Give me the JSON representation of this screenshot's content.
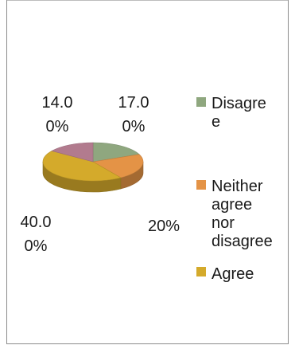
{
  "chart_data": {
    "type": "pie",
    "style": "3d",
    "slices": [
      {
        "name": "Disagree",
        "value": 17,
        "label": [
          "17.0",
          "0%"
        ],
        "color": "#8FA77F"
      },
      {
        "name": "Neither agree nor disagree",
        "value": 20,
        "label": [
          "20%"
        ],
        "color": "#E49346"
      },
      {
        "name": "Agree",
        "value": 40,
        "label": [
          "40.0",
          "0%"
        ],
        "color": "#D4AA2B"
      },
      {
        "name": "",
        "value": 14,
        "label": [
          "14.0",
          "0%"
        ],
        "color": "#B27B8E"
      }
    ],
    "legend": {
      "placement": "right",
      "entries": [
        {
          "lines": [
            "Disagre",
            "e"
          ],
          "color": "#8FA77F"
        },
        {
          "lines": [
            "Neither",
            "agree",
            "nor",
            "disagree"
          ],
          "color": "#E49346"
        },
        {
          "lines": [
            "Agree"
          ],
          "color": "#D4AA2B"
        }
      ]
    }
  }
}
